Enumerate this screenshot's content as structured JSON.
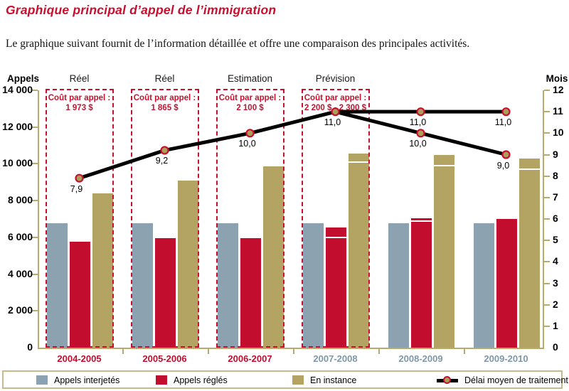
{
  "header": {
    "title": "Graphique principal d’appel de l’immigration",
    "subtitle": "Le graphique suivant fournit de l’information détaillée et offre une comparaison des principales activités."
  },
  "colors": {
    "accent_red": "#C8102E",
    "bar_red": "#C20D2F",
    "bar_bluegray": "#8CA2B0",
    "bar_tan": "#B3A464",
    "axis_tan": "#B9AA6E",
    "year_label_red": "#C20D2F",
    "year_label_blue": "#7F98A8",
    "legend_border": "#C6BA8C",
    "marker_fill": "#AC9D5C",
    "marker_stroke": "#C8102E",
    "line_black": "#000000"
  },
  "chart_data": {
    "type": "bar",
    "title": "Graphique principal d’appel de l’immigration",
    "categories": [
      "2004-2005",
      "2005-2006",
      "2006-2007",
      "2007-2008",
      "2008-2009",
      "2009-2010"
    ],
    "category_label_colors": [
      "#C20D2F",
      "#C20D2F",
      "#C20D2F",
      "#7F98A8",
      "#7F98A8",
      "#7F98A8"
    ],
    "left_axis": {
      "label": "Appels",
      "min": 0,
      "max": 14000,
      "tick_step": 2000,
      "tick_labels": [
        "0",
        "2 000",
        "4 000",
        "6 000",
        "8 000",
        "10 000",
        "12 000",
        "14 000"
      ]
    },
    "right_axis": {
      "label": "Mois",
      "min": 0,
      "max": 12,
      "tick_step": 1,
      "tick_labels": [
        "0",
        "1",
        "2",
        "3",
        "4",
        "5",
        "6",
        "7",
        "8",
        "9",
        "10",
        "11",
        "12"
      ]
    },
    "series": [
      {
        "name": "Appels interjetés",
        "color": "#8CA2B0",
        "values": [
          [
            6750
          ],
          [
            6750
          ],
          [
            6750
          ],
          [
            6750
          ],
          [
            6750
          ],
          [
            6750
          ]
        ]
      },
      {
        "name": "Appels réglés",
        "color": "#C20D2F",
        "values": [
          [
            5750
          ],
          [
            5950
          ],
          [
            5950
          ],
          [
            5950,
            6550
          ],
          [
            6850,
            7050
          ],
          [
            7000
          ]
        ]
      },
      {
        "name": "En instance",
        "color": "#B3A464",
        "values": [
          [
            8400
          ],
          [
            9100
          ],
          [
            9850
          ],
          [
            10050,
            10550
          ],
          [
            9850,
            10500
          ],
          [
            9650,
            10300
          ]
        ]
      }
    ],
    "line_series": {
      "name": "Délai moyen de traitement",
      "unit": "mois",
      "color": "#000000",
      "marker_fill": "#AC9D5C",
      "marker_stroke": "#C8102E",
      "branches": [
        {
          "name": "principal",
          "points": [
            {
              "x": 0,
              "v": 7.9,
              "label": "7,9"
            },
            {
              "x": 1,
              "v": 9.2,
              "label": "9,2"
            },
            {
              "x": 2,
              "v": 10.0,
              "label": "10,0"
            },
            {
              "x": 3,
              "v": 11.0,
              "label": "11,0"
            },
            {
              "x": 4,
              "v": 11.0,
              "label": "11,0"
            },
            {
              "x": 5,
              "v": 11.0,
              "label": "11,0"
            }
          ]
        },
        {
          "name": "scénario décroissant",
          "points": [
            {
              "x": 3,
              "v": 11.0,
              "label": null
            },
            {
              "x": 4,
              "v": 10.0,
              "label": "10,0"
            },
            {
              "x": 5,
              "v": 9.0,
              "label": "9,0"
            }
          ]
        }
      ]
    },
    "period_annotations": [
      {
        "category_index": 0,
        "title": "Réel",
        "cost_lines": [
          "Coût par appel :",
          "1 973 $"
        ]
      },
      {
        "category_index": 1,
        "title": "Réel",
        "cost_lines": [
          "Coût par appel :",
          "1 865 $"
        ]
      },
      {
        "category_index": 2,
        "title": "Estimation",
        "cost_lines": [
          "Coût par appel :",
          "2 100 $"
        ]
      },
      {
        "category_index": 3,
        "title": "Prévision",
        "cost_lines": [
          "Coût par appel :",
          "2 200 $ - 2 300 $"
        ]
      }
    ]
  },
  "legend": {
    "items": [
      {
        "label": "Appels interjetés",
        "type": "swatch",
        "color": "#8CA2B0"
      },
      {
        "label": "Appels réglés",
        "type": "swatch",
        "color": "#C20D2F"
      },
      {
        "label": "En instance",
        "type": "swatch",
        "color": "#B3A464"
      },
      {
        "label": "Délai moyen de traitement",
        "type": "line-marker",
        "color": "#000000"
      }
    ]
  }
}
